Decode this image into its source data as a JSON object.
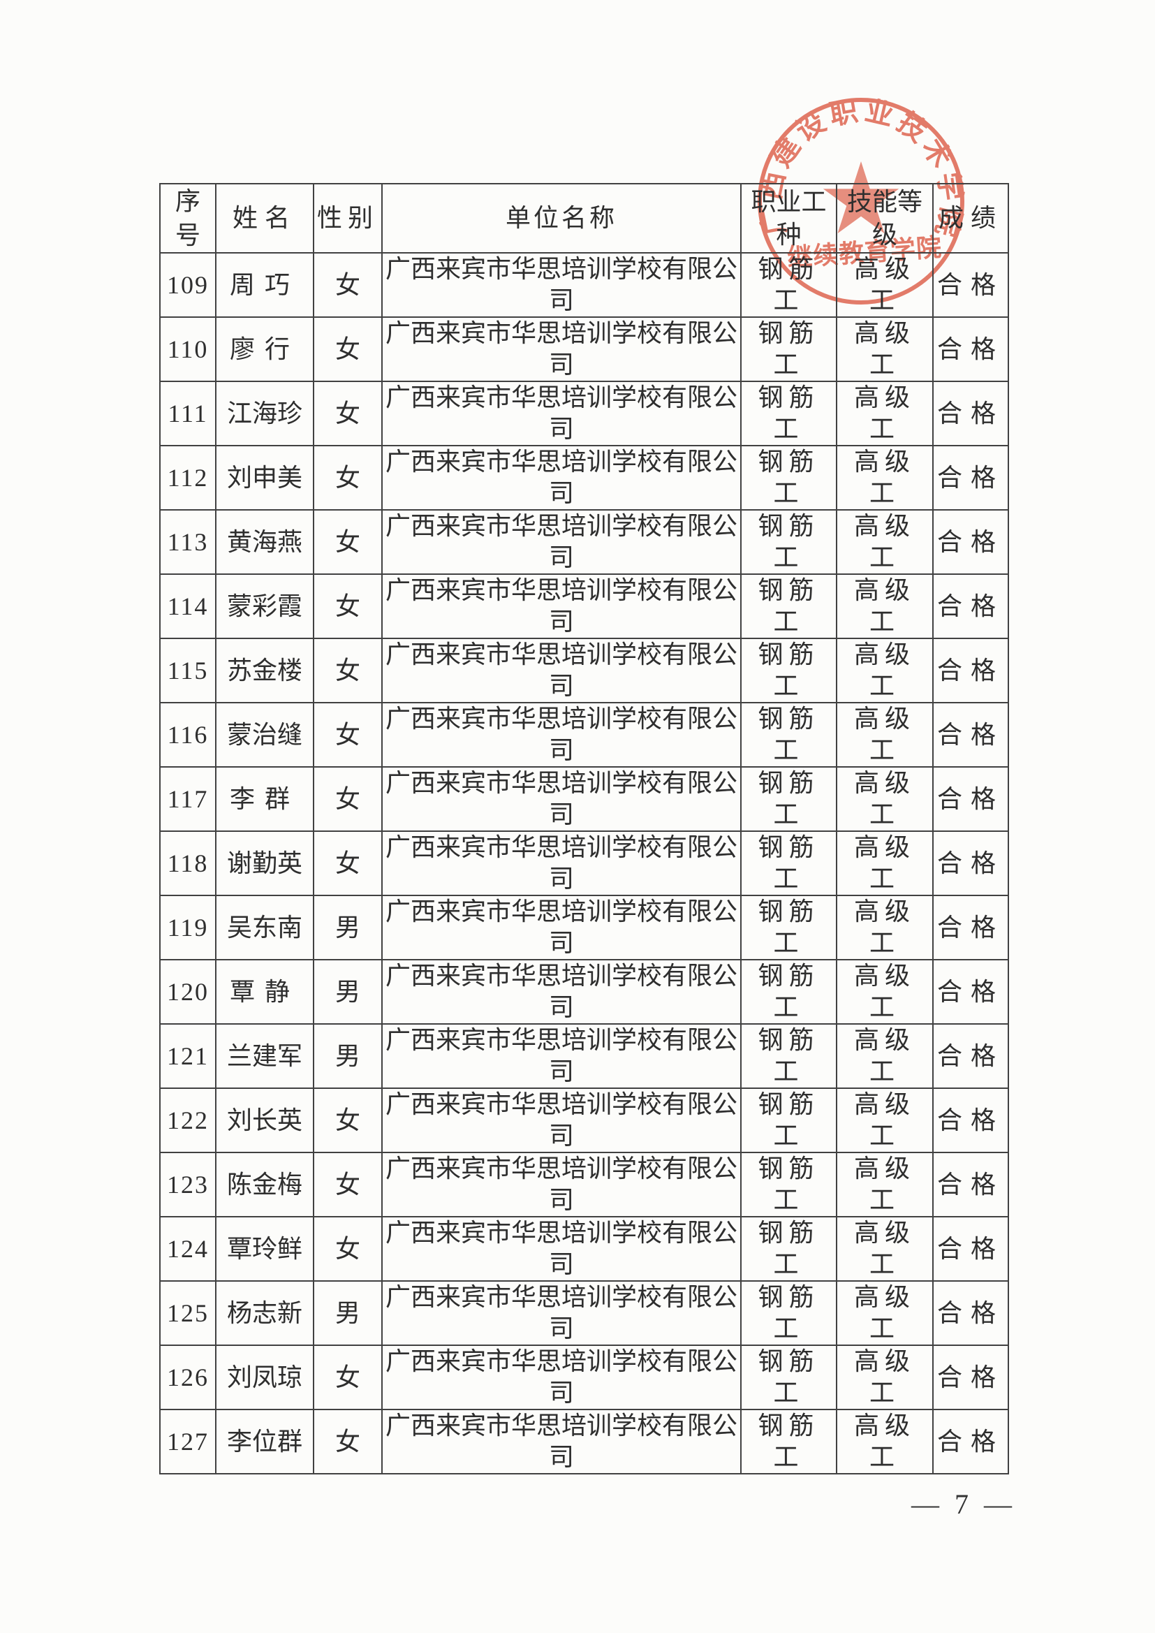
{
  "page": {
    "page_number": "— 7 —"
  },
  "stamp": {
    "arc_text": "广西建设职业技术学院",
    "bottom_text": "继续教育学院",
    "color": "#e05f4a"
  },
  "table": {
    "headers": {
      "no": "序号",
      "name": "姓名",
      "gender": "性别",
      "unit": "单位名称",
      "trade": "职业工种",
      "level": "技能等级",
      "result": "成绩"
    },
    "rows": [
      {
        "no": "109",
        "name": "周巧",
        "gender": "女",
        "unit": "广西来宾市华思培训学校有限公司",
        "trade": "钢筋工",
        "level": "高级工",
        "result": "合格"
      },
      {
        "no": "110",
        "name": "廖行",
        "gender": "女",
        "unit": "广西来宾市华思培训学校有限公司",
        "trade": "钢筋工",
        "level": "高级工",
        "result": "合格"
      },
      {
        "no": "111",
        "name": "江海珍",
        "gender": "女",
        "unit": "广西来宾市华思培训学校有限公司",
        "trade": "钢筋工",
        "level": "高级工",
        "result": "合格"
      },
      {
        "no": "112",
        "name": "刘申美",
        "gender": "女",
        "unit": "广西来宾市华思培训学校有限公司",
        "trade": "钢筋工",
        "level": "高级工",
        "result": "合格"
      },
      {
        "no": "113",
        "name": "黄海燕",
        "gender": "女",
        "unit": "广西来宾市华思培训学校有限公司",
        "trade": "钢筋工",
        "level": "高级工",
        "result": "合格"
      },
      {
        "no": "114",
        "name": "蒙彩霞",
        "gender": "女",
        "unit": "广西来宾市华思培训学校有限公司",
        "trade": "钢筋工",
        "level": "高级工",
        "result": "合格"
      },
      {
        "no": "115",
        "name": "苏金楼",
        "gender": "女",
        "unit": "广西来宾市华思培训学校有限公司",
        "trade": "钢筋工",
        "level": "高级工",
        "result": "合格"
      },
      {
        "no": "116",
        "name": "蒙治缝",
        "gender": "女",
        "unit": "广西来宾市华思培训学校有限公司",
        "trade": "钢筋工",
        "level": "高级工",
        "result": "合格"
      },
      {
        "no": "117",
        "name": "李群",
        "gender": "女",
        "unit": "广西来宾市华思培训学校有限公司",
        "trade": "钢筋工",
        "level": "高级工",
        "result": "合格"
      },
      {
        "no": "118",
        "name": "谢勤英",
        "gender": "女",
        "unit": "广西来宾市华思培训学校有限公司",
        "trade": "钢筋工",
        "level": "高级工",
        "result": "合格"
      },
      {
        "no": "119",
        "name": "吴东南",
        "gender": "男",
        "unit": "广西来宾市华思培训学校有限公司",
        "trade": "钢筋工",
        "level": "高级工",
        "result": "合格"
      },
      {
        "no": "120",
        "name": "覃静",
        "gender": "男",
        "unit": "广西来宾市华思培训学校有限公司",
        "trade": "钢筋工",
        "level": "高级工",
        "result": "合格"
      },
      {
        "no": "121",
        "name": "兰建军",
        "gender": "男",
        "unit": "广西来宾市华思培训学校有限公司",
        "trade": "钢筋工",
        "level": "高级工",
        "result": "合格"
      },
      {
        "no": "122",
        "name": "刘长英",
        "gender": "女",
        "unit": "广西来宾市华思培训学校有限公司",
        "trade": "钢筋工",
        "level": "高级工",
        "result": "合格"
      },
      {
        "no": "123",
        "name": "陈金梅",
        "gender": "女",
        "unit": "广西来宾市华思培训学校有限公司",
        "trade": "钢筋工",
        "level": "高级工",
        "result": "合格"
      },
      {
        "no": "124",
        "name": "覃玲鲜",
        "gender": "女",
        "unit": "广西来宾市华思培训学校有限公司",
        "trade": "钢筋工",
        "level": "高级工",
        "result": "合格"
      },
      {
        "no": "125",
        "name": "杨志新",
        "gender": "男",
        "unit": "广西来宾市华思培训学校有限公司",
        "trade": "钢筋工",
        "level": "高级工",
        "result": "合格"
      },
      {
        "no": "126",
        "name": "刘凤琼",
        "gender": "女",
        "unit": "广西来宾市华思培训学校有限公司",
        "trade": "钢筋工",
        "level": "高级工",
        "result": "合格"
      },
      {
        "no": "127",
        "name": "李位群",
        "gender": "女",
        "unit": "广西来宾市华思培训学校有限公司",
        "trade": "钢筋工",
        "level": "高级工",
        "result": "合格"
      }
    ]
  }
}
